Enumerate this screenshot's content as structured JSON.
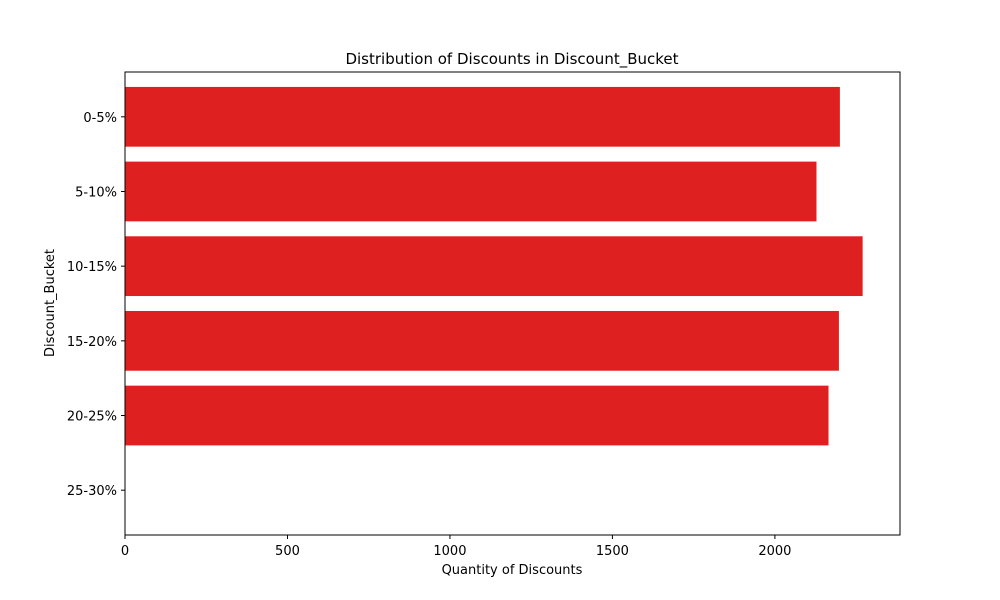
{
  "chart_data": {
    "type": "bar",
    "orientation": "horizontal",
    "title": "Distribution of Discounts in Discount_Bucket",
    "xlabel": "Quantity of Discounts",
    "ylabel": "Discount_Bucket",
    "categories": [
      "0-5%",
      "5-10%",
      "10-15%",
      "15-20%",
      "20-25%",
      "25-30%"
    ],
    "values": [
      2200,
      2128,
      2270,
      2197,
      2165,
      0
    ],
    "xlim": [
      0,
      2385
    ],
    "xticks": [
      0,
      500,
      1000,
      1500,
      2000
    ],
    "grid": false,
    "legend": "none",
    "bar_color": "#df2020"
  }
}
